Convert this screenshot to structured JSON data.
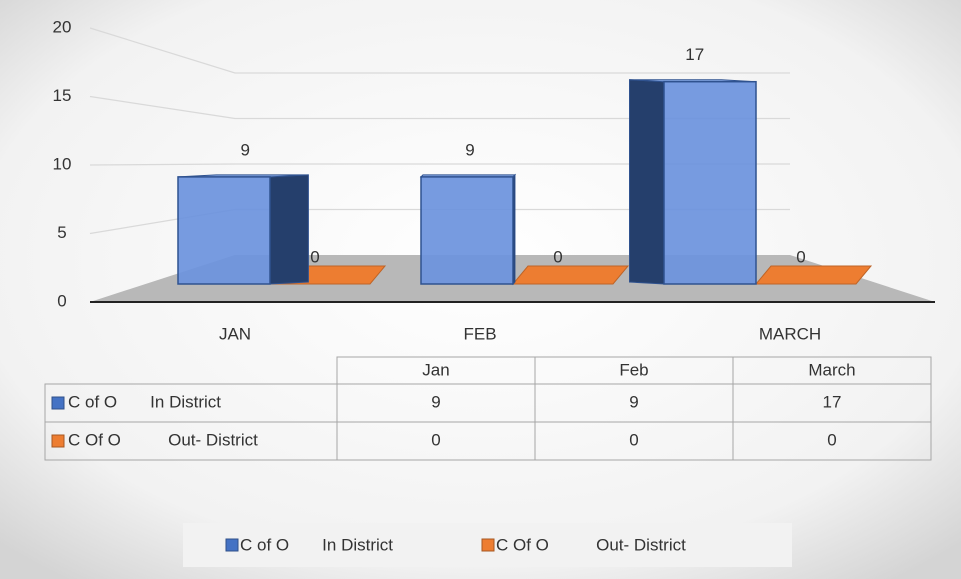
{
  "chart_data": {
    "type": "bar3d",
    "categories": [
      "JAN",
      "FEB",
      "MARCH"
    ],
    "table_columns": [
      "Jan",
      "Feb",
      "March"
    ],
    "series": [
      {
        "name": "C of O       In District",
        "color": "#4472c4",
        "values": [
          9,
          9,
          17
        ]
      },
      {
        "name": "C Of O          Out- District",
        "color": "#ed7d31",
        "values": [
          0,
          0,
          0
        ]
      }
    ],
    "ylim": [
      0,
      20
    ],
    "yticks": [
      0,
      5,
      10,
      15,
      20
    ],
    "grid": true,
    "legend": "bottom"
  }
}
